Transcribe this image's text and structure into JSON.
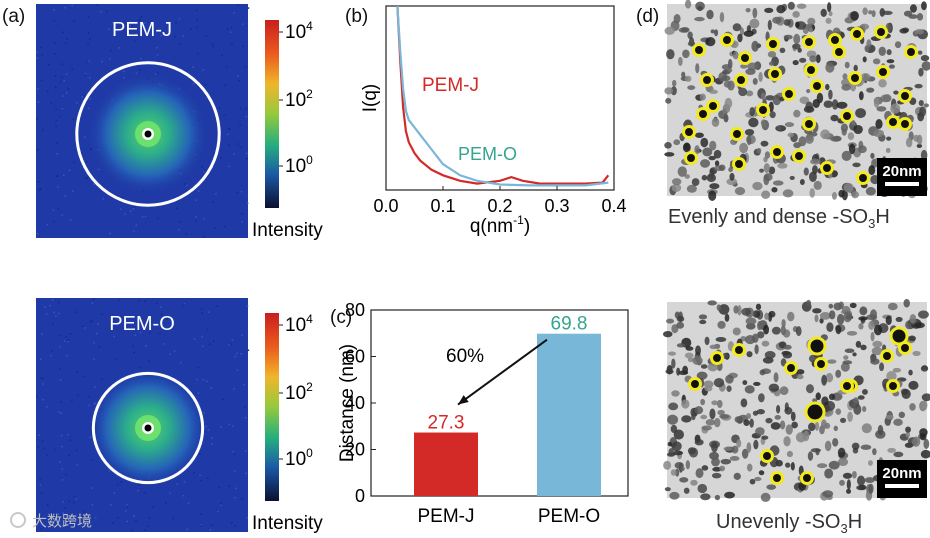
{
  "panels": {
    "a": {
      "label": "(a)",
      "top": {
        "sample": "PEM-J",
        "ring": 0.85
      },
      "bottom": {
        "sample": "PEM-O",
        "ring": 0.62
      },
      "colorbar": {
        "ticks": [
          {
            "base": "10",
            "exp": "4"
          },
          {
            "base": "10",
            "exp": "2"
          },
          {
            "base": "10",
            "exp": "0"
          }
        ],
        "title": "Intensity"
      }
    },
    "b": {
      "label": "(b)"
    },
    "c": {
      "label": "(c)"
    },
    "d": {
      "label": "(d)",
      "top": {
        "scalebar": "20nm",
        "caption_prefix": "Evenly and dense -SO",
        "caption_sub": "3",
        "caption_suffix": "H"
      },
      "bottom": {
        "scalebar": "20nm",
        "caption_prefix": "Unevenly -SO",
        "caption_sub": "3",
        "caption_suffix": "H"
      }
    }
  },
  "colors": {
    "pem_j": "#d42a27",
    "pem_o": "#79b7d8",
    "pem_o_text": "#33a58e",
    "detector_bg": "#1f3aa6",
    "highlight": "#f2ea1c"
  },
  "watermark": "大数跨境",
  "chart_data": [
    {
      "type": "line",
      "panel": "b",
      "xlabel": "q(nm",
      "xlabel_sup": "-1",
      "xlabel_close": ")",
      "ylabel": "I(q)",
      "xlim": [
        0.0,
        0.4
      ],
      "ylim": [
        0,
        100
      ],
      "xticks": [
        "0.0",
        "0.1",
        "0.2",
        "0.3",
        "0.4"
      ],
      "series": [
        {
          "name": "PEM-J",
          "x": [
            0.02,
            0.025,
            0.03,
            0.035,
            0.04,
            0.05,
            0.06,
            0.08,
            0.1,
            0.13,
            0.16,
            0.2,
            0.22,
            0.24,
            0.27,
            0.3,
            0.35,
            0.38,
            0.39
          ],
          "y": [
            100,
            70,
            45,
            32,
            26,
            20,
            16,
            11,
            8,
            5,
            3.5,
            5,
            7,
            5,
            3.5,
            3.5,
            3.5,
            4,
            8
          ]
        },
        {
          "name": "PEM-O",
          "x": [
            0.02,
            0.025,
            0.03,
            0.035,
            0.04,
            0.05,
            0.06,
            0.08,
            0.1,
            0.13,
            0.16,
            0.2,
            0.25,
            0.3,
            0.35,
            0.39
          ],
          "y": [
            100,
            75,
            55,
            43,
            38,
            34,
            30,
            22,
            14,
            8,
            5,
            3,
            2.5,
            2.5,
            2.5,
            4
          ]
        }
      ],
      "annotations": [
        {
          "text": "PEM-J",
          "series": 0
        },
        {
          "text": "PEM-O",
          "series": 1
        }
      ]
    },
    {
      "type": "bar",
      "panel": "c",
      "categories": [
        "PEM-J",
        "PEM-O"
      ],
      "values": [
        27.3,
        69.8
      ],
      "value_labels": [
        "27.3",
        "69.8"
      ],
      "ylabel": "Distance (nm)",
      "ylim": [
        0,
        80
      ],
      "yticks": [
        0,
        20,
        40,
        60,
        80
      ],
      "annotation": "60%"
    }
  ]
}
